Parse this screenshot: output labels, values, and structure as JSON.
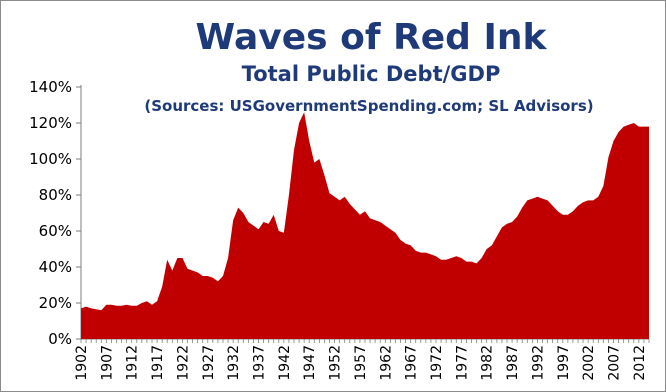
{
  "chart_data": {
    "type": "area",
    "title": "Waves of Red Ink",
    "subtitle": "Total Public Debt/GDP",
    "source": "(Sources: USGovernmentSpending.com; SL Advisors)",
    "xlabel": "",
    "ylabel": "",
    "ylim": [
      0,
      140
    ],
    "xlim": [
      1902,
      2014
    ],
    "y_ticks": [
      "0%",
      "20%",
      "40%",
      "60%",
      "80%",
      "100%",
      "120%",
      "140%"
    ],
    "x_ticks": [
      "1902",
      "1907",
      "1912",
      "1917",
      "1922",
      "1927",
      "1932",
      "1937",
      "1942",
      "1947",
      "1952",
      "1957",
      "1962",
      "1967",
      "1972",
      "1977",
      "1982",
      "1987",
      "1992",
      "1997",
      "2002",
      "2007",
      "2012"
    ],
    "grid": false,
    "legend": "none",
    "fill_color": "#c00000",
    "series": [
      {
        "x": [
          1902,
          1903,
          1904,
          1905,
          1906,
          1907,
          1908,
          1909,
          1910,
          1911,
          1912,
          1913,
          1914,
          1915,
          1916,
          1917,
          1918,
          1919,
          1920,
          1921,
          1922,
          1923,
          1924,
          1925,
          1926,
          1927,
          1928,
          1929,
          1930,
          1931,
          1932,
          1933,
          1934,
          1935,
          1936,
          1937,
          1938,
          1939,
          1940,
          1941,
          1942,
          1943,
          1944,
          1945,
          1946,
          1947,
          1948,
          1949,
          1950,
          1951,
          1952,
          1953,
          1954,
          1955,
          1956,
          1957,
          1958,
          1959,
          1960,
          1961,
          1962,
          1963,
          1964,
          1965,
          1966,
          1967,
          1968,
          1969,
          1970,
          1971,
          1972,
          1973,
          1974,
          1975,
          1976,
          1977,
          1978,
          1979,
          1980,
          1981,
          1982,
          1983,
          1984,
          1985,
          1986,
          1987,
          1988,
          1989,
          1990,
          1991,
          1992,
          1993,
          1994,
          1995,
          1996,
          1997,
          1998,
          1999,
          2000,
          2001,
          2002,
          2003,
          2004,
          2005,
          2006,
          2007,
          2008,
          2009,
          2010,
          2011,
          2012,
          2013,
          2014
        ],
        "values": [
          17,
          18,
          17,
          16.5,
          16,
          19,
          19,
          18.5,
          18.5,
          19,
          18.5,
          18.5,
          20,
          21,
          19,
          21,
          29,
          44,
          38,
          45,
          45,
          39,
          38,
          37,
          35,
          35,
          34,
          32,
          35,
          45,
          66,
          73,
          70,
          65,
          63,
          61,
          65,
          64,
          69,
          60,
          59,
          80,
          105,
          120,
          126,
          110,
          98,
          100,
          91,
          81,
          79,
          77,
          79,
          75,
          72,
          69,
          71,
          67,
          66,
          65,
          63,
          61,
          59,
          55,
          53,
          52,
          49,
          48,
          48,
          47,
          46,
          44,
          44,
          45,
          46,
          45,
          43,
          43,
          42,
          45,
          50,
          52,
          57,
          62,
          64,
          65,
          68,
          73,
          77,
          78,
          79,
          78,
          77,
          74,
          71,
          69,
          69,
          71,
          74,
          76,
          77,
          77,
          79,
          85,
          101,
          110,
          115,
          118,
          119,
          120,
          118,
          118,
          118
        ]
      }
    ]
  }
}
